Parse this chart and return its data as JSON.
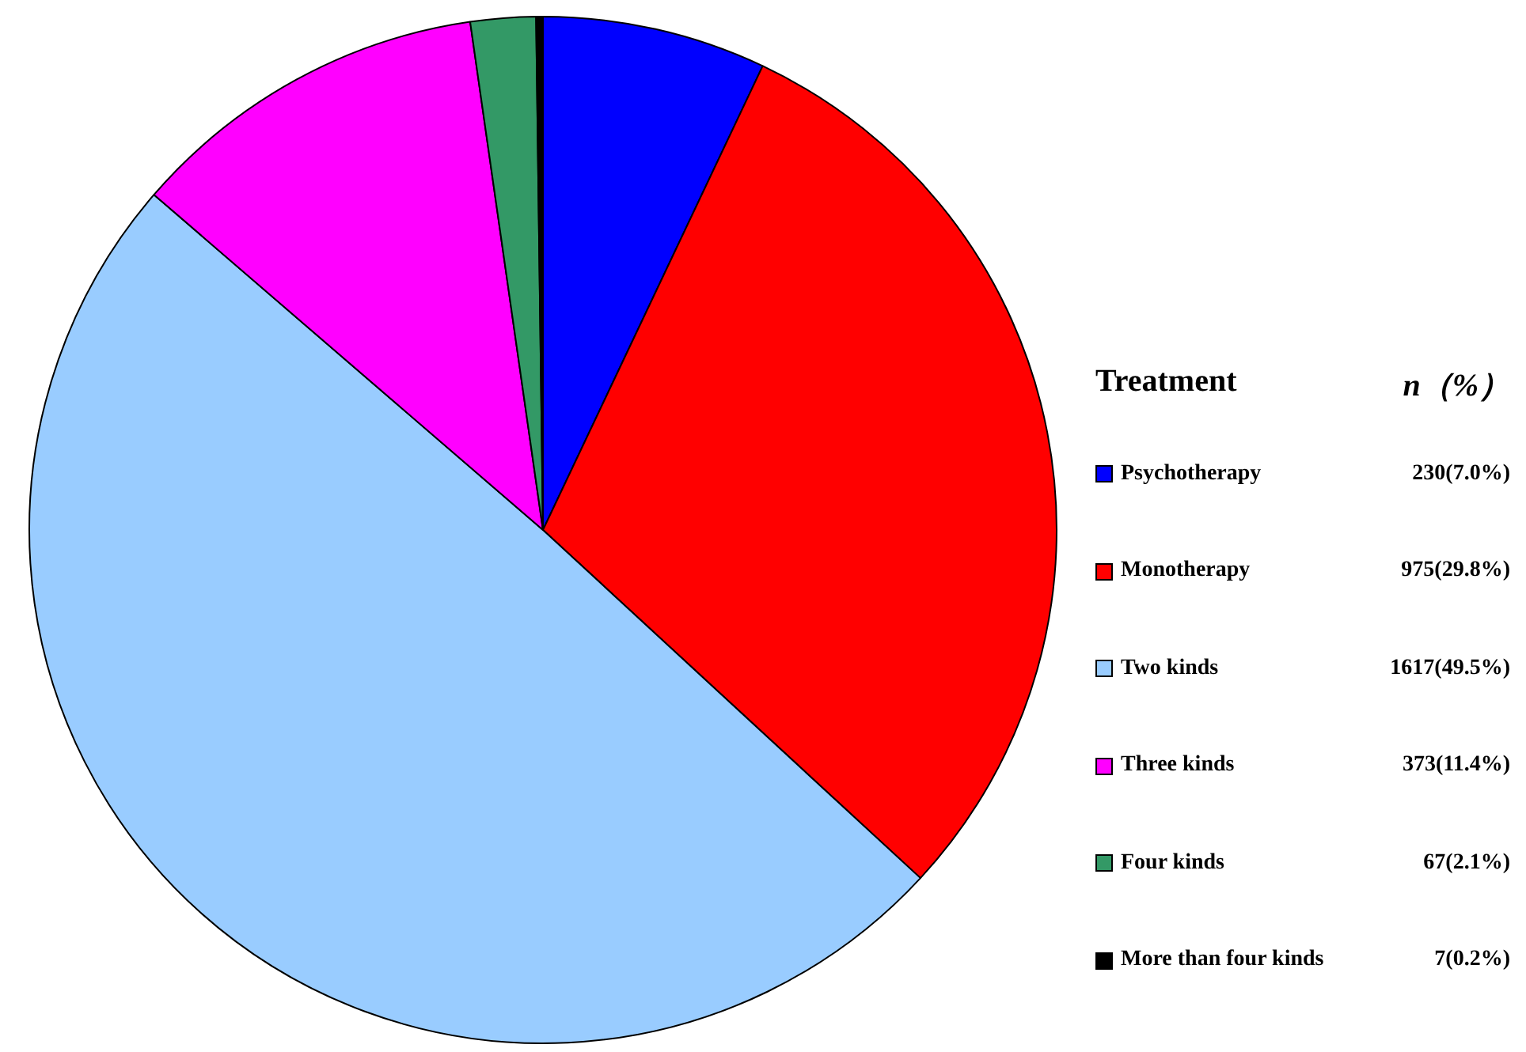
{
  "chart_data": {
    "type": "pie",
    "categories": [
      "Psychotherapy",
      "Monotherapy",
      "Two kinds",
      "Three kinds",
      "Four kinds",
      "More than four kinds"
    ],
    "values": [
      230,
      975,
      1617,
      373,
      67,
      7
    ],
    "colors": [
      "#0000ff",
      "#ff0000",
      "#99ccff",
      "#ff00ff",
      "#339966",
      "#000000"
    ],
    "value_labels": [
      "230(7.0%)",
      "975(29.8%)",
      "1617(49.5%)",
      "373(11.4%)",
      "67(2.1%)",
      "7(0.2%)"
    ],
    "legend_title": "Treatment",
    "annotations": [
      "n（%）"
    ],
    "legend": "right"
  }
}
